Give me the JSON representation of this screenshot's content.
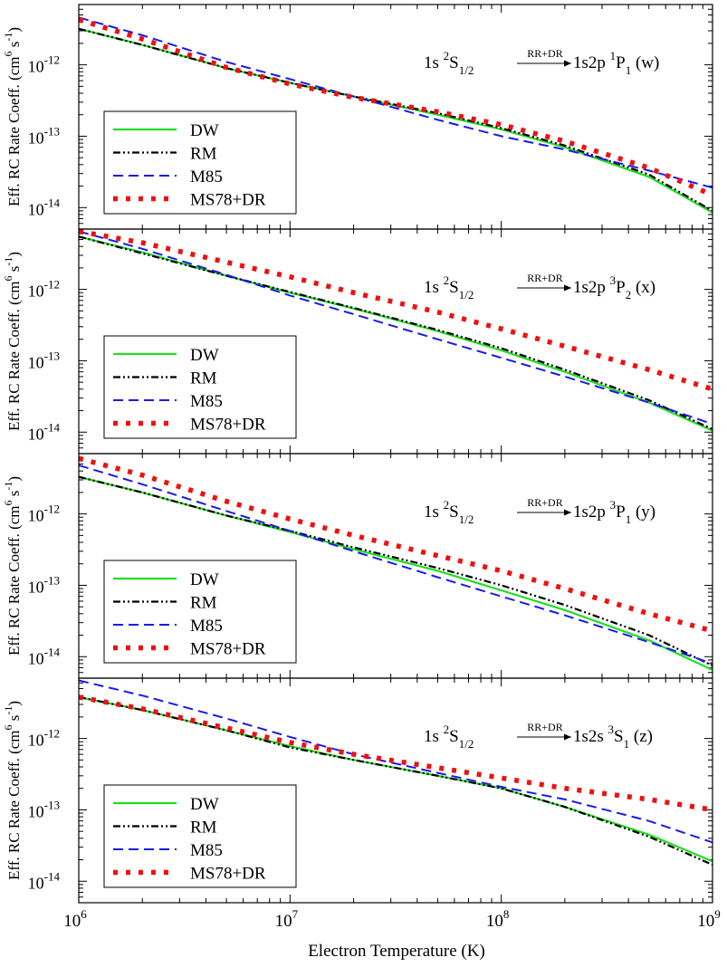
{
  "figure": {
    "xlabel": "Electron Temperature (K)",
    "colors": {
      "DW": "#22dd22",
      "RM": "#000000",
      "M85": "#1a1aee",
      "MS78+DR": "#ee1111"
    }
  },
  "chart_data": [
    {
      "type": "line",
      "id": "w",
      "title": "1s 2S1/2 --(RR+DR)--> 1s2p 1P1 (w)",
      "annotation": {
        "lower": "1s",
        "lower_term_sup": "2",
        "lower_term": "S",
        "lower_term_sub": "1/2",
        "arrow_label": "RR+DR",
        "upper": "1s2p",
        "upper_term_sup": "1",
        "upper_term": "P",
        "upper_term_sub": "1",
        "tag": "(w)"
      },
      "ylabel": "Eff. RC Rate Coeff. (cm6 s-1)",
      "xscale": "log",
      "yscale": "log",
      "xlim": [
        1000000.0,
        1000000000.0
      ],
      "ylim": [
        5e-15,
        7e-12
      ],
      "yticks": [
        "10^-14",
        "10^-13",
        "10^-12"
      ],
      "legend": "lower-left",
      "x": [
        1000000.0,
        2000000.0,
        5000000.0,
        10000000.0,
        20000000.0,
        50000000.0,
        100000000.0,
        200000000.0,
        500000000.0,
        1000000000.0
      ],
      "series": [
        {
          "name": "DW",
          "values": [
            3.2e-12,
            1.9e-12,
            9e-13,
            5.6e-13,
            3.6e-13,
            2e-13,
            1.25e-13,
            7e-14,
            2.7e-14,
            8.5e-15
          ]
        },
        {
          "name": "RM",
          "values": [
            3.2e-12,
            1.9e-12,
            9e-13,
            5.6e-13,
            3.6e-13,
            2.1e-13,
            1.3e-13,
            7.4e-14,
            2.9e-14,
            9e-15
          ]
        },
        {
          "name": "M85",
          "values": [
            4.6e-12,
            2.6e-12,
            1.1e-12,
            6.3e-13,
            3.6e-13,
            1.7e-13,
            1e-13,
            6.5e-14,
            3.3e-14,
            1.9e-14
          ]
        },
        {
          "name": "MS78+DR",
          "values": [
            4.3e-12,
            2.3e-12,
            9.2e-13,
            5.4e-13,
            3.5e-13,
            2.2e-13,
            1.45e-13,
            8.5e-14,
            3.6e-14,
            1.5e-14
          ]
        }
      ]
    },
    {
      "type": "line",
      "id": "x",
      "title": "1s 2S1/2 --(RR+DR)--> 1s2p 3P2 (x)",
      "annotation": {
        "lower": "1s",
        "lower_term_sup": "2",
        "lower_term": "S",
        "lower_term_sub": "1/2",
        "arrow_label": "RR+DR",
        "upper": "1s2p",
        "upper_term_sup": "3",
        "upper_term": "P",
        "upper_term_sub": "2",
        "tag": "(x)"
      },
      "ylabel": "Eff. RC Rate Coeff. (cm6 s-1)",
      "xscale": "log",
      "yscale": "log",
      "xlim": [
        1000000.0,
        1000000000.0
      ],
      "ylim": [
        5e-15,
        7e-12
      ],
      "yticks": [
        "10^-14",
        "10^-13",
        "10^-12"
      ],
      "legend": "lower-left",
      "x": [
        1000000.0,
        2000000.0,
        5000000.0,
        10000000.0,
        20000000.0,
        50000000.0,
        100000000.0,
        200000000.0,
        500000000.0,
        1000000000.0
      ],
      "series": [
        {
          "name": "DW",
          "values": [
            5.5e-12,
            3.3e-12,
            1.55e-12,
            9e-13,
            5.4e-13,
            2.6e-13,
            1.4e-13,
            7e-14,
            2.6e-14,
            1.05e-14
          ]
        },
        {
          "name": "RM",
          "values": [
            5.5e-12,
            3.2e-12,
            1.55e-12,
            9.2e-13,
            5.5e-13,
            2.7e-13,
            1.5e-13,
            7.5e-14,
            2.8e-14,
            1.1e-14
          ]
        },
        {
          "name": "M85",
          "values": [
            6.5e-12,
            3.7e-12,
            1.6e-12,
            8.2e-13,
            4.5e-13,
            2e-13,
            1.1e-13,
            6e-14,
            2.6e-14,
            1.3e-14
          ]
        },
        {
          "name": "MS78+DR",
          "values": [
            6.5e-12,
            4.5e-12,
            2.4e-12,
            1.5e-12,
            9e-13,
            4.8e-13,
            2.8e-13,
            1.6e-13,
            7.5e-14,
            4e-14
          ]
        }
      ]
    },
    {
      "type": "line",
      "id": "y",
      "title": "1s 2S1/2 --(RR+DR)--> 1s2p 3P1 (y)",
      "annotation": {
        "lower": "1s",
        "lower_term_sup": "2",
        "lower_term": "S",
        "lower_term_sub": "1/2",
        "arrow_label": "RR+DR",
        "upper": "1s2p",
        "upper_term_sup": "3",
        "upper_term": "P",
        "upper_term_sub": "1",
        "tag": "(y)"
      },
      "ylabel": "Eff. RC Rate Coeff. (cm6 s-1)",
      "xscale": "log",
      "yscale": "log",
      "xlim": [
        1000000.0,
        1000000000.0
      ],
      "ylim": [
        5e-15,
        7e-12
      ],
      "yticks": [
        "10^-14",
        "10^-13",
        "10^-12"
      ],
      "legend": "lower-left",
      "x": [
        1000000.0,
        2000000.0,
        5000000.0,
        10000000.0,
        20000000.0,
        50000000.0,
        100000000.0,
        200000000.0,
        500000000.0,
        1000000000.0
      ],
      "series": [
        {
          "name": "DW",
          "values": [
            3.3e-12,
            2e-12,
            9.5e-13,
            5.6e-13,
            3.2e-13,
            1.6e-13,
            8.5e-14,
            4.5e-14,
            1.7e-14,
            6.5e-15
          ]
        },
        {
          "name": "RM",
          "values": [
            3.3e-12,
            2e-12,
            9.5e-13,
            5.8e-13,
            3.4e-13,
            1.75e-13,
            1e-13,
            5.3e-14,
            2e-14,
            7.5e-15
          ]
        },
        {
          "name": "M85",
          "values": [
            4.8e-12,
            2.6e-12,
            1.1e-12,
            5.8e-13,
            3e-13,
            1.3e-13,
            7e-14,
            3.8e-14,
            1.6e-14,
            8e-15
          ]
        },
        {
          "name": "MS78+DR",
          "values": [
            6e-12,
            3.5e-12,
            1.5e-12,
            8.5e-13,
            5e-13,
            2.6e-13,
            1.6e-13,
            9e-14,
            4e-14,
            2.3e-14
          ]
        }
      ]
    },
    {
      "type": "line",
      "id": "z",
      "title": "1s 2S1/2 --(RR+DR)--> 1s2s 3S1 (z)",
      "annotation": {
        "lower": "1s",
        "lower_term_sup": "2",
        "lower_term": "S",
        "lower_term_sub": "1/2",
        "arrow_label": "RR+DR",
        "upper": "1s2s",
        "upper_term_sup": "3",
        "upper_term": "S",
        "upper_term_sub": "1",
        "tag": "(z)"
      },
      "ylabel": "Eff. RC Rate Coeff. (cm6 s-1)",
      "xscale": "log",
      "yscale": "log",
      "xlim": [
        1000000.0,
        1000000000.0
      ],
      "ylim": [
        5e-15,
        7e-12
      ],
      "yticks": [
        "10^-14",
        "10^-13",
        "10^-12"
      ],
      "legend": "lower-left",
      "x": [
        1000000.0,
        2000000.0,
        5000000.0,
        10000000.0,
        20000000.0,
        50000000.0,
        100000000.0,
        200000000.0,
        500000000.0,
        1000000000.0
      ],
      "series": [
        {
          "name": "DW",
          "values": [
            3.8e-12,
            2.5e-12,
            1.3e-12,
            7.8e-13,
            5e-13,
            3e-13,
            2e-13,
            1.1e-13,
            4.5e-14,
            1.9e-14
          ]
        },
        {
          "name": "RM",
          "values": [
            3.8e-12,
            2.5e-12,
            1.3e-12,
            7.5e-13,
            5e-13,
            3e-13,
            2e-13,
            1.1e-13,
            4.2e-14,
            1.7e-14
          ]
        },
        {
          "name": "M85",
          "values": [
            6.5e-12,
            4e-12,
            1.9e-12,
            1.05e-12,
            6e-13,
            3.3e-13,
            2.1e-13,
            1.4e-13,
            7e-14,
            3.5e-14
          ]
        },
        {
          "name": "MS78+DR",
          "values": [
            3.8e-12,
            2.6e-12,
            1.4e-12,
            8.8e-13,
            6e-13,
            3.9e-13,
            2.8e-13,
            2e-13,
            1.4e-13,
            1e-13
          ]
        }
      ]
    }
  ]
}
